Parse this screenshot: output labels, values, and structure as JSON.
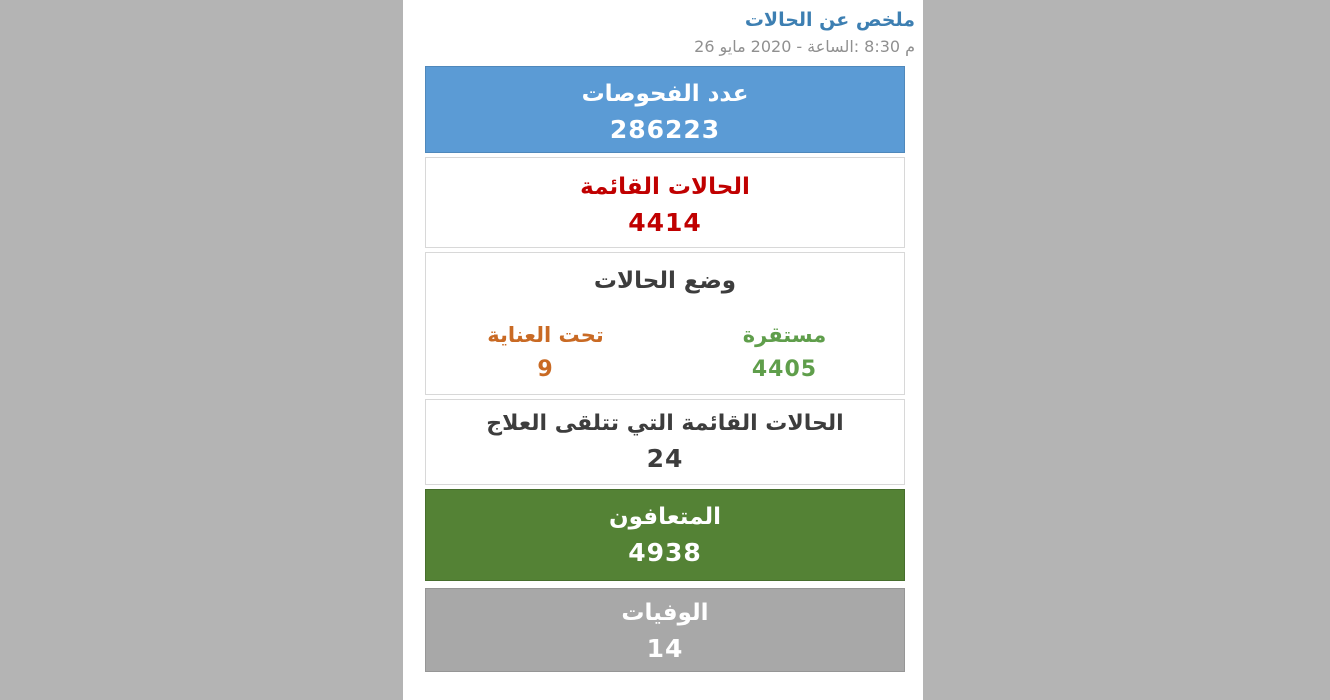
{
  "page": {
    "background_color": "#b4b4b4",
    "panel_color": "#ffffff"
  },
  "header": {
    "title": "ملخص عن الحالات",
    "title_color": "#3d7fb2",
    "datetime": "26 مايو 2020 - الساعة: 8:30 م",
    "datetime_parts": [
      "26",
      "مايو",
      "2020",
      "-",
      "الساعة:",
      "8:30",
      "م"
    ],
    "datetime_color": "#909090"
  },
  "cards": {
    "tests": {
      "label": "عدد الفحوصات",
      "value": "286223",
      "bg_color": "#5b9bd5",
      "text_color": "#ffffff"
    },
    "active_cases": {
      "label": "الحالات القائمة",
      "value": "4414",
      "bg_color": "#ffffff",
      "text_color": "#c00000"
    },
    "case_status": {
      "label": "وضع الحالات",
      "text_color": "#3d3d3d",
      "stable": {
        "label": "مستقرة",
        "value": "4405",
        "text_color": "#5f9e4b"
      },
      "under_care": {
        "label": "تحت العناية",
        "value": "9",
        "text_color": "#c96a24"
      }
    },
    "receiving_treatment": {
      "label": "الحالات القائمة التي تتلقى العلاج",
      "value": "24",
      "bg_color": "#ffffff",
      "text_color": "#3d3d3d"
    },
    "recovered": {
      "label": "المتعافون",
      "value": "4938",
      "bg_color": "#548235",
      "text_color": "#ffffff"
    },
    "deaths": {
      "label": "الوفيات",
      "value": "14",
      "bg_color": "#a8a8a8",
      "text_color": "#ffffff"
    }
  }
}
